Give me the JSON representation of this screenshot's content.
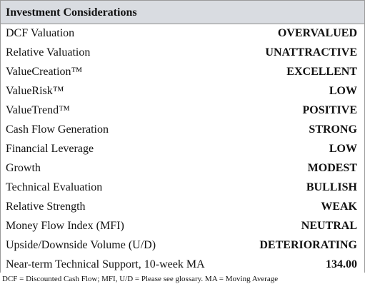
{
  "header": {
    "title": "Investment Considerations"
  },
  "table": {
    "rows": [
      [
        "DCF Valuation",
        "OVERVALUED"
      ],
      [
        "Relative Valuation",
        "UNATTRACTIVE"
      ],
      [
        "ValueCreation™",
        "EXCELLENT"
      ],
      [
        "ValueRisk™",
        "LOW"
      ],
      [
        "ValueTrend™",
        "POSITIVE"
      ],
      [
        "Cash Flow Generation",
        "STRONG"
      ],
      [
        "Financial Leverage",
        "LOW"
      ],
      [
        "Growth",
        "MODEST"
      ],
      [
        "Technical Evaluation",
        "BULLISH"
      ],
      [
        "Relative Strength",
        "WEAK"
      ],
      [
        "Money Flow Index (MFI)",
        "NEUTRAL"
      ],
      [
        "Upside/Downside Volume (U/D)",
        "DETERIORATING"
      ],
      [
        "Near-term Technical Support, 10-week MA",
        "134.00"
      ]
    ]
  },
  "footnote": "DCF = Discounted Cash Flow; MFI, U/D = Please see glossary. MA = Moving Average"
}
